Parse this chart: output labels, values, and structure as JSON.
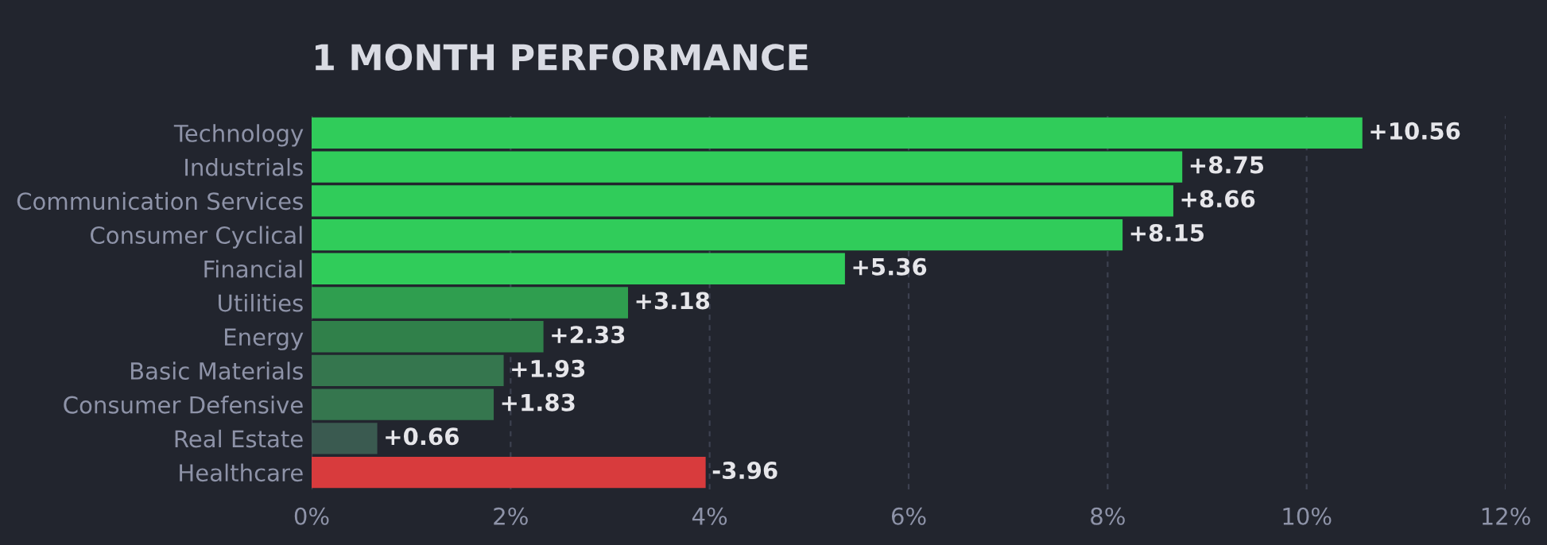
{
  "chart_data": {
    "type": "bar",
    "orientation": "horizontal",
    "title": "1 MONTH PERFORMANCE",
    "categories": [
      "Technology",
      "Industrials",
      "Communication Services",
      "Consumer Cyclical",
      "Financial",
      "Utilities",
      "Energy",
      "Basic Materials",
      "Consumer Defensive",
      "Real Estate",
      "Healthcare"
    ],
    "values": [
      10.56,
      8.75,
      8.66,
      8.15,
      5.36,
      3.18,
      2.33,
      1.93,
      1.83,
      0.66,
      -3.96
    ],
    "base": [
      0,
      0,
      0,
      0,
      0,
      0,
      0,
      0,
      0,
      0,
      3.96
    ],
    "value_labels": [
      "+10.56",
      "+8.75",
      "+8.66",
      "+8.15",
      "+5.36",
      "+3.18",
      "+2.33",
      "+1.93",
      "+1.83",
      "+0.66",
      "-3.96"
    ],
    "colors": [
      "#30cc5a",
      "#30cc5a",
      "#30cc5a",
      "#30cc5a",
      "#30cc5a",
      "#2f9e4f",
      "#30804a",
      "#35764e",
      "#35764e",
      "#3a5a50",
      "#d83b3d"
    ],
    "xlim": [
      0,
      12
    ],
    "xticks": [
      {
        "value": 0,
        "label": "0%"
      },
      {
        "value": 2,
        "label": "2%"
      },
      {
        "value": 4,
        "label": "4%"
      },
      {
        "value": 6,
        "label": "6%"
      },
      {
        "value": 8,
        "label": "8%"
      },
      {
        "value": 10,
        "label": "10%"
      },
      {
        "value": 12,
        "label": "12%"
      }
    ],
    "grid": "x"
  }
}
